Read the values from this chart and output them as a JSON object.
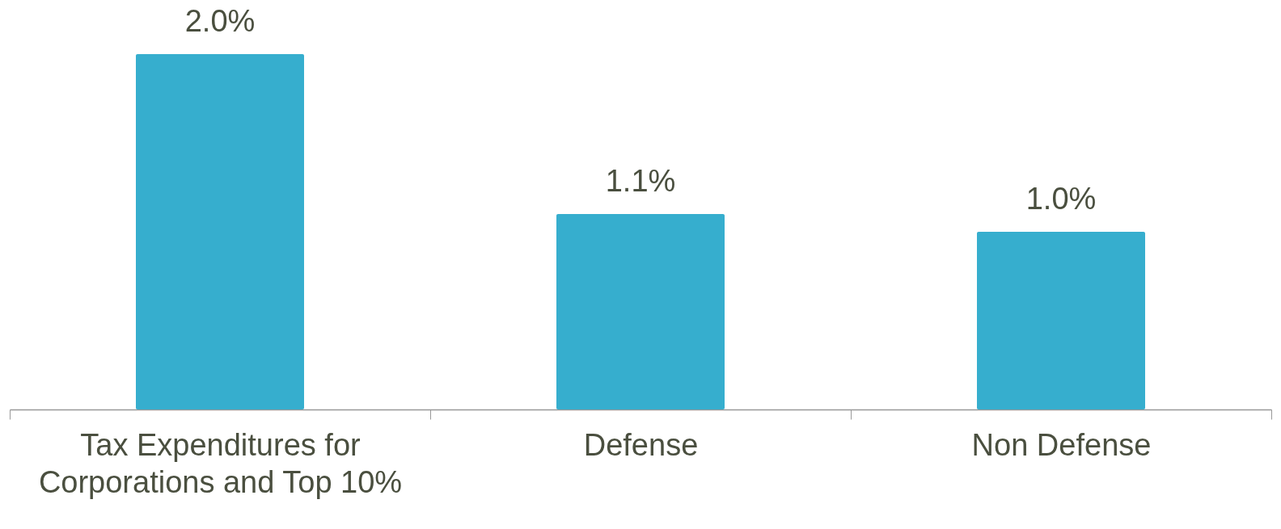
{
  "chart_data": {
    "type": "bar",
    "categories": [
      "Tax Expenditures for Corporations and Top 10%",
      "Defense",
      "Non Defense"
    ],
    "values": [
      2.0,
      1.1,
      1.0
    ],
    "value_labels": [
      "2.0%",
      "1.1%",
      "1.0%"
    ],
    "color": "#36aece"
  }
}
